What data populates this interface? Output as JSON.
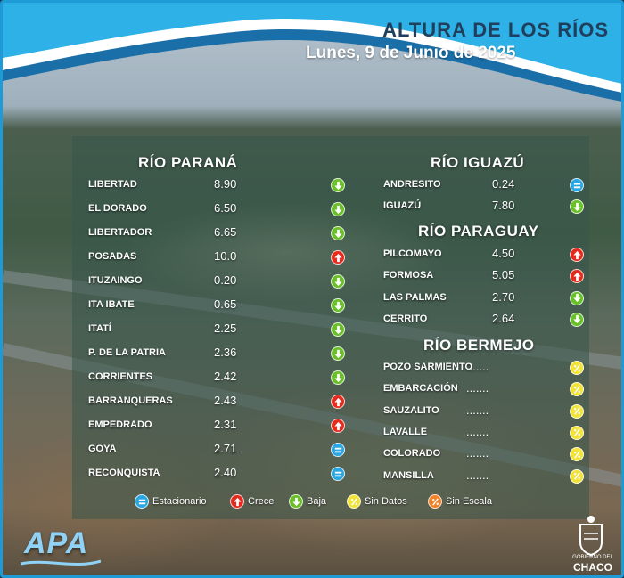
{
  "header": {
    "title": "ALTURA DE LOS RÍOS",
    "date": "Lunes, 9 de Junio de 2025"
  },
  "rivers": {
    "parana": {
      "title": "RÍO PARANÁ",
      "stations": [
        {
          "name": "LIBERTAD",
          "value": "8.90",
          "status": "down"
        },
        {
          "name": "EL DORADO",
          "value": "6.50",
          "status": "down"
        },
        {
          "name": "LIBERTADOR",
          "value": "6.65",
          "status": "down"
        },
        {
          "name": "POSADAS",
          "value": "10.0",
          "status": "up"
        },
        {
          "name": "ITUZAINGO",
          "value": "0.20",
          "status": "down"
        },
        {
          "name": "ITA IBATE",
          "value": "0.65",
          "status": "down"
        },
        {
          "name": "ITATÍ",
          "value": "2.25",
          "status": "down"
        },
        {
          "name": "P. DE LA PATRIA",
          "value": "2.36",
          "status": "down"
        },
        {
          "name": "CORRIENTES",
          "value": "2.42",
          "status": "down"
        },
        {
          "name": "BARRANQUERAS",
          "value": "2.43",
          "status": "up"
        },
        {
          "name": "EMPEDRADO",
          "value": "2.31",
          "status": "up"
        },
        {
          "name": "GOYA",
          "value": "2.71",
          "status": "stationary"
        },
        {
          "name": "RECONQUISTA",
          "value": "2.40",
          "status": "stationary"
        }
      ]
    },
    "iguazu": {
      "title": "RÍO IGUAZÚ",
      "stations": [
        {
          "name": "ANDRESITO",
          "value": "0.24",
          "status": "stationary"
        },
        {
          "name": "IGUAZÚ",
          "value": "7.80",
          "status": "down"
        }
      ]
    },
    "paraguay": {
      "title": "RÍO PARAGUAY",
      "stations": [
        {
          "name": "PILCOMAYO",
          "value": "4.50",
          "status": "up"
        },
        {
          "name": "FORMOSA",
          "value": "5.05",
          "status": "up"
        },
        {
          "name": "LAS PALMAS",
          "value": "2.70",
          "status": "down"
        },
        {
          "name": "CERRITO",
          "value": "2.64",
          "status": "down"
        }
      ]
    },
    "bermejo": {
      "title": "RÍO BERMEJO",
      "stations": [
        {
          "name": "POZO SARMIENTO",
          "value": ".......",
          "status": "no-data"
        },
        {
          "name": "EMBARCACIÓN",
          "value": ".......",
          "status": "no-data"
        },
        {
          "name": "SAUZALITO",
          "value": ".......",
          "status": "no-data"
        },
        {
          "name": "LAVALLE",
          "value": ".......",
          "status": "no-data"
        },
        {
          "name": "COLORADO",
          "value": ".......",
          "status": "no-data"
        },
        {
          "name": "MANSILLA",
          "value": ".......",
          "status": "no-data"
        }
      ]
    }
  },
  "legend": {
    "stationary": "Estacionario",
    "up": "Crece",
    "down": "Baja",
    "no_data": "Sin Datos",
    "no_scale": "Sin Escala"
  },
  "logos": {
    "apa": "APA",
    "chaco_small": "GOBIERNO DEL",
    "chaco_big": "CHACO"
  },
  "colors": {
    "up": "#e52b1e",
    "down": "#6bbf2a",
    "stationary": "#2aa7e0",
    "no_data": "#f2e33a",
    "no_scale": "#f0822a",
    "header_blue": "#1e9bd7",
    "title_navy": "#1f3f5c"
  }
}
